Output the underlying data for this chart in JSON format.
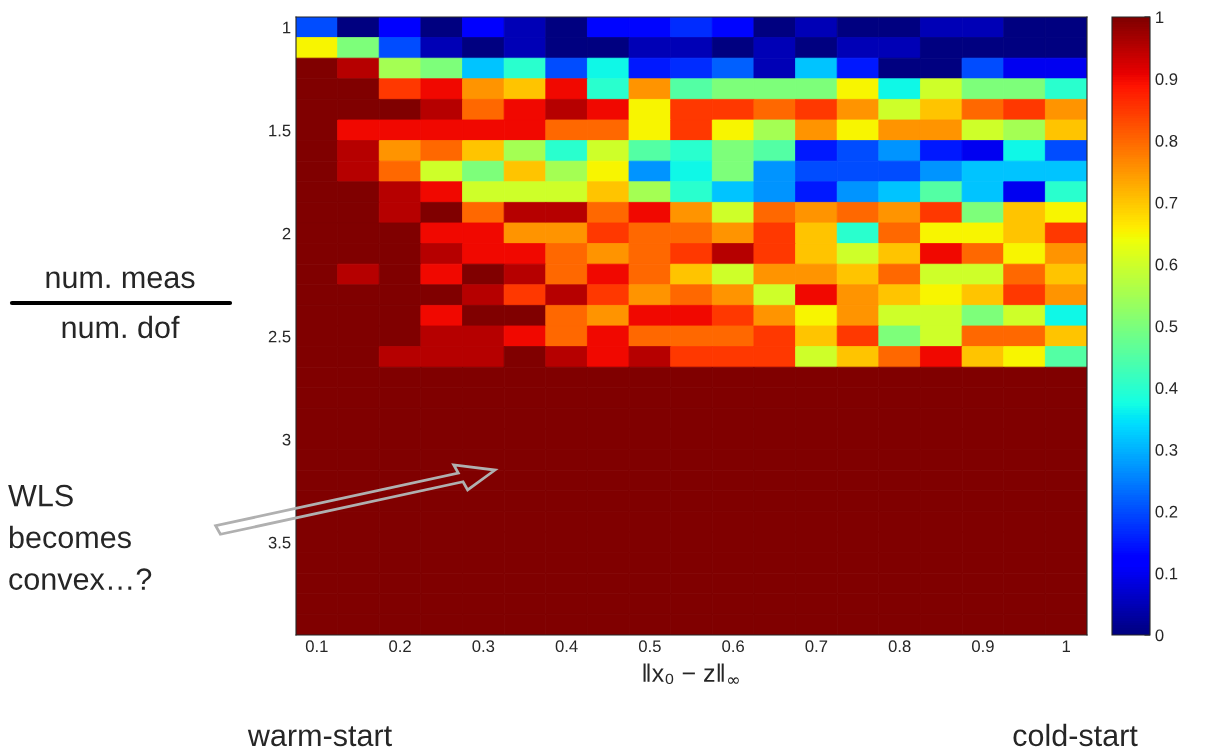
{
  "chart_data": {
    "type": "heatmap",
    "xlabel": "‖x₀ − z‖$_{∞}$",
    "ylabel": "num. meas\nnum. dof",
    "annotations": [
      "WLS\nbecomes\nconvex…?",
      "warm-start",
      "cold-start"
    ],
    "categories": [
      "0.1",
      null,
      "0.2",
      null,
      "0.3",
      null,
      "0.4",
      null,
      "0.5",
      null,
      "0.6",
      null,
      "0.7",
      null,
      "0.8",
      null,
      "0.9",
      null,
      "1"
    ],
    "y_categories": [
      "1",
      null,
      null,
      null,
      null,
      "1.5",
      null,
      null,
      null,
      null,
      "2",
      null,
      null,
      null,
      null,
      "2.5",
      null,
      null,
      null,
      null,
      "3",
      null,
      null,
      null,
      null,
      "3.5",
      null,
      null,
      null,
      null
    ],
    "cells": [
      [
        0.2,
        0,
        0.12,
        0,
        0.12,
        0.05,
        0,
        0.13,
        0.13,
        0.17,
        0.13,
        0,
        0.05,
        0,
        0,
        0.05,
        0.05,
        0,
        0
      ],
      [
        0.65,
        0.5,
        0.2,
        0.05,
        0,
        0.05,
        0,
        0,
        0.05,
        0.05,
        0,
        0.05,
        0,
        0.05,
        0.05,
        0,
        0,
        0,
        0
      ],
      [
        1,
        0.95,
        0.55,
        0.5,
        0.32,
        0.4,
        0.2,
        0.37,
        0.15,
        0.17,
        0.22,
        0.05,
        0.32,
        0.15,
        0,
        0,
        0.2,
        0.1,
        0.1
      ],
      [
        1,
        1,
        0.85,
        0.9,
        0.75,
        0.7,
        0.9,
        0.4,
        0.75,
        0.45,
        0.5,
        0.5,
        0.5,
        0.65,
        0.37,
        0.6,
        0.5,
        0.5,
        0.4
      ],
      [
        1,
        1,
        1,
        0.95,
        0.8,
        0.9,
        0.95,
        0.9,
        0.65,
        0.85,
        0.85,
        0.8,
        0.85,
        0.75,
        0.6,
        0.7,
        0.8,
        0.85,
        0.75
      ],
      [
        1,
        0.9,
        0.9,
        0.9,
        0.9,
        0.9,
        0.8,
        0.8,
        0.65,
        0.85,
        0.65,
        0.55,
        0.75,
        0.65,
        0.75,
        0.75,
        0.6,
        0.55,
        0.7
      ],
      [
        1,
        0.95,
        0.75,
        0.8,
        0.7,
        0.55,
        0.4,
        0.6,
        0.45,
        0.4,
        0.5,
        0.45,
        0.15,
        0.2,
        0.27,
        0.15,
        0.1,
        0.37,
        0.2
      ],
      [
        1,
        0.95,
        0.8,
        0.6,
        0.5,
        0.7,
        0.55,
        0.65,
        0.27,
        0.37,
        0.5,
        0.27,
        0.2,
        0.2,
        0.2,
        0.27,
        0.32,
        0.32,
        0.32
      ],
      [
        1,
        1,
        0.95,
        0.9,
        0.6,
        0.6,
        0.6,
        0.7,
        0.55,
        0.4,
        0.32,
        0.27,
        0.15,
        0.27,
        0.32,
        0.45,
        0.32,
        0.1,
        0.4
      ],
      [
        1,
        1,
        0.95,
        1,
        0.8,
        0.95,
        0.95,
        0.8,
        0.9,
        0.75,
        0.6,
        0.8,
        0.75,
        0.8,
        0.75,
        0.85,
        0.5,
        0.7,
        0.65
      ],
      [
        1,
        1,
        1,
        0.9,
        0.9,
        0.75,
        0.75,
        0.85,
        0.8,
        0.8,
        0.75,
        0.85,
        0.7,
        0.4,
        0.8,
        0.65,
        0.65,
        0.7,
        0.85
      ],
      [
        1,
        1,
        1,
        0.95,
        0.9,
        0.9,
        0.8,
        0.75,
        0.8,
        0.85,
        0.95,
        0.85,
        0.7,
        0.6,
        0.7,
        0.9,
        0.8,
        0.65,
        0.75
      ],
      [
        1,
        0.95,
        1,
        0.9,
        1,
        0.95,
        0.8,
        0.9,
        0.8,
        0.7,
        0.6,
        0.75,
        0.75,
        0.7,
        0.8,
        0.6,
        0.6,
        0.8,
        0.7
      ],
      [
        1,
        1,
        1,
        1,
        0.95,
        0.85,
        0.95,
        0.85,
        0.75,
        0.8,
        0.75,
        0.6,
        0.9,
        0.75,
        0.7,
        0.65,
        0.7,
        0.85,
        0.75
      ],
      [
        1,
        1,
        1,
        0.9,
        1,
        1,
        0.8,
        0.75,
        0.9,
        0.9,
        0.85,
        0.75,
        0.65,
        0.75,
        0.6,
        0.6,
        0.5,
        0.6,
        0.37
      ],
      [
        1,
        1,
        1,
        0.95,
        0.95,
        0.9,
        0.8,
        0.9,
        0.8,
        0.8,
        0.8,
        0.85,
        0.7,
        0.85,
        0.5,
        0.6,
        0.8,
        0.8,
        0.7
      ],
      [
        1,
        1,
        0.95,
        0.95,
        0.95,
        1,
        0.95,
        0.9,
        0.95,
        0.85,
        0.85,
        0.85,
        0.6,
        0.7,
        0.8,
        0.9,
        0.7,
        0.65,
        0.45
      ],
      [
        1,
        1,
        1,
        1,
        1,
        1,
        1,
        1,
        1,
        1,
        1,
        1,
        1,
        1,
        1,
        1,
        1,
        1,
        1
      ],
      [
        1,
        1,
        1,
        1,
        1,
        1,
        1,
        1,
        1,
        1,
        1,
        1,
        1,
        1,
        1,
        1,
        1,
        1,
        1
      ],
      [
        1,
        1,
        1,
        1,
        1,
        1,
        1,
        1,
        1,
        1,
        1,
        1,
        1,
        1,
        1,
        1,
        1,
        1,
        1
      ],
      [
        1,
        1,
        1,
        1,
        1,
        1,
        1,
        1,
        1,
        1,
        1,
        1,
        1,
        1,
        1,
        1,
        1,
        1,
        1
      ],
      [
        1,
        1,
        1,
        1,
        1,
        1,
        1,
        1,
        1,
        1,
        1,
        1,
        1,
        1,
        1,
        1,
        1,
        1,
        1
      ],
      [
        1,
        1,
        1,
        1,
        1,
        1,
        1,
        1,
        1,
        1,
        1,
        1,
        1,
        1,
        1,
        1,
        1,
        1,
        1
      ],
      [
        1,
        1,
        1,
        1,
        1,
        1,
        1,
        1,
        1,
        1,
        1,
        1,
        1,
        1,
        1,
        1,
        1,
        1,
        1
      ],
      [
        1,
        1,
        1,
        1,
        1,
        1,
        1,
        1,
        1,
        1,
        1,
        1,
        1,
        1,
        1,
        1,
        1,
        1,
        1
      ],
      [
        1,
        1,
        1,
        1,
        1,
        1,
        1,
        1,
        1,
        1,
        1,
        1,
        1,
        1,
        1,
        1,
        1,
        1,
        1
      ],
      [
        1,
        1,
        1,
        1,
        1,
        1,
        1,
        1,
        1,
        1,
        1,
        1,
        1,
        1,
        1,
        1,
        1,
        1,
        1
      ],
      [
        1,
        1,
        1,
        1,
        1,
        1,
        1,
        1,
        1,
        1,
        1,
        1,
        1,
        1,
        1,
        1,
        1,
        1,
        1
      ],
      [
        1,
        1,
        1,
        1,
        1,
        1,
        1,
        1,
        1,
        1,
        1,
        1,
        1,
        1,
        1,
        1,
        1,
        1,
        1
      ],
      [
        1,
        1,
        1,
        1,
        1,
        1,
        1,
        1,
        1,
        1,
        1,
        1,
        1,
        1,
        1,
        1,
        1,
        1,
        1
      ]
    ],
    "clim": [
      0,
      1
    ],
    "cticks": [
      0,
      0.1,
      0.2,
      0.3,
      0.4,
      0.5,
      0.6,
      0.7,
      0.8,
      0.9,
      1
    ]
  }
}
